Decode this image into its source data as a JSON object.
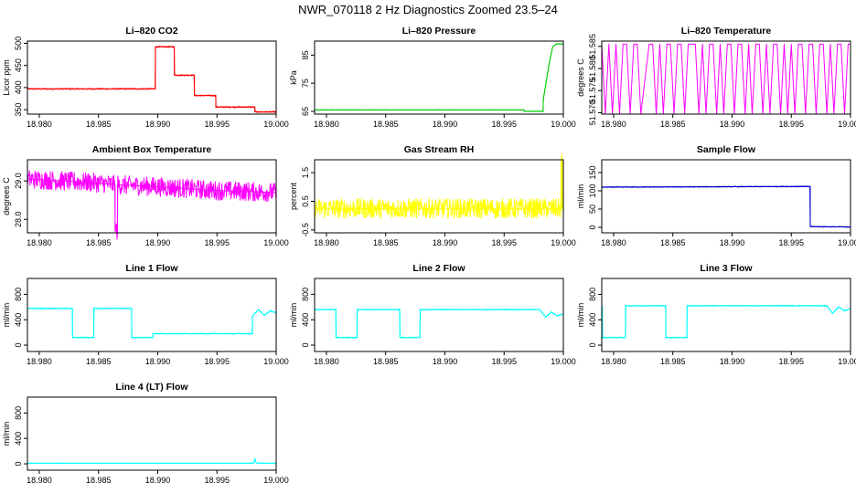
{
  "figure_title": "NWR_070118  2 Hz Diagnostics Zoomed 23.5–24",
  "chart_data": [
    {
      "type": "line",
      "title": "Li–820 CO2",
      "ylabel": "Licor ppm",
      "color": "#ff0000",
      "xlim": [
        18.979,
        19.0
      ],
      "ylim": [
        340,
        505
      ],
      "xticks": [
        18.98,
        18.985,
        18.99,
        18.995,
        19.0
      ],
      "xtick_labels": [
        "18.980",
        "18.985",
        "18.990",
        "18.995",
        "19.000"
      ],
      "yticks": [
        350,
        400,
        450,
        500
      ],
      "ytick_labels": [
        "350",
        "400",
        "450",
        "500"
      ],
      "noise": 1.5,
      "x": [
        18.979,
        18.9898,
        18.9898,
        18.9914,
        18.9914,
        18.9931,
        18.9931,
        18.9949,
        18.9949,
        18.9982,
        18.9982,
        19.0
      ],
      "y": [
        397,
        397,
        492,
        492,
        428,
        428,
        382,
        382,
        356,
        356,
        345,
        345
      ]
    },
    {
      "type": "line",
      "title": "Li–820 Pressure",
      "ylabel": "kPa",
      "color": "#00cc00",
      "xlim": [
        18.979,
        19.0
      ],
      "ylim": [
        64,
        90
      ],
      "xticks": [
        18.98,
        18.985,
        18.99,
        18.995,
        19.0
      ],
      "xtick_labels": [
        "18.980",
        "18.985",
        "18.990",
        "18.995",
        "19.000"
      ],
      "yticks": [
        65,
        75,
        85
      ],
      "ytick_labels": [
        "65",
        "75",
        "85"
      ],
      "noise": 0.1,
      "x": [
        18.979,
        18.9967,
        18.9967,
        18.9983,
        18.9983,
        18.9988,
        18.9991,
        18.9994,
        19.0
      ],
      "y": [
        65.5,
        65.5,
        65,
        65,
        69,
        82,
        88,
        89,
        89
      ]
    },
    {
      "type": "line",
      "title": "Li–820 Temperature",
      "ylabel": "degrees C",
      "color": "#ff00ff",
      "xlim": [
        18.979,
        19.0
      ],
      "ylim": [
        51.5697,
        51.5862
      ],
      "xticks": [
        18.98,
        18.985,
        18.99,
        18.995,
        19.0
      ],
      "xtick_labels": [
        "18.980",
        "18.985",
        "18.990",
        "18.995",
        "19.000"
      ],
      "yticks": [
        51.57,
        51.575,
        51.58,
        51.585
      ],
      "ytick_labels": [
        "51.570",
        "51.575",
        "51.580",
        "51.585"
      ],
      "noise": 0,
      "x": [
        18.979,
        18.9793,
        18.9796,
        18.9799,
        18.9802,
        18.9805,
        18.9808,
        18.9811,
        18.9814,
        18.9817,
        18.982,
        18.9823,
        18.983,
        18.9833,
        18.9836,
        18.9839,
        18.9842,
        18.9845,
        18.9848,
        18.9851,
        18.9854,
        18.9857,
        18.986,
        18.9863,
        18.9866,
        18.9869,
        18.9872,
        18.9875,
        18.9878,
        18.9881,
        18.9884,
        18.9887,
        18.989,
        18.9893,
        18.9896,
        18.9899,
        18.9902,
        18.9905,
        18.9908,
        18.9911,
        18.9914,
        18.9917,
        18.992,
        18.9923,
        18.9926,
        18.9929,
        18.9932,
        18.9935,
        18.9938,
        18.9941,
        18.9944,
        18.9947,
        18.995,
        18.9953,
        18.9956,
        18.9959,
        18.9962,
        18.9965,
        18.9968,
        18.9971,
        18.9974,
        18.9977,
        18.998,
        18.9983,
        18.9986,
        18.9989,
        18.9992,
        18.9995,
        18.9998,
        19.0
      ],
      "y": [
        51.5855,
        51.5697,
        51.5855,
        51.5697,
        51.5855,
        51.5697,
        51.5855,
        51.5855,
        51.5697,
        51.5855,
        51.5855,
        51.5697,
        51.5855,
        51.5855,
        51.5697,
        51.5855,
        51.5697,
        51.5855,
        51.5855,
        51.5697,
        51.5855,
        51.5855,
        51.5697,
        51.5855,
        51.5855,
        51.5855,
        51.5697,
        51.5855,
        51.5697,
        51.5855,
        51.5855,
        51.5697,
        51.5855,
        51.5697,
        51.5855,
        51.5855,
        51.5697,
        51.5855,
        51.5855,
        51.5697,
        51.5855,
        51.5697,
        51.5855,
        51.5855,
        51.5697,
        51.5855,
        51.5697,
        51.5855,
        51.5855,
        51.5697,
        51.5855,
        51.5697,
        51.5855,
        51.5697,
        51.5855,
        51.5855,
        51.5697,
        51.5855,
        51.5855,
        51.5697,
        51.5855,
        51.5855,
        51.5697,
        51.5855,
        51.5697,
        51.5855,
        51.5855,
        51.5697,
        51.5855,
        51.5855
      ]
    },
    {
      "type": "line",
      "title": "Ambient Box Temperature",
      "ylabel": "degrees C",
      "color": "#ff00ff",
      "xlim": [
        18.979,
        19.0
      ],
      "ylim": [
        27.65,
        29.55
      ],
      "xticks": [
        18.98,
        18.985,
        18.99,
        18.995,
        19.0
      ],
      "xtick_labels": [
        "18.980",
        "18.985",
        "18.990",
        "18.995",
        "19.000"
      ],
      "yticks": [
        28.0,
        29.0
      ],
      "ytick_labels": [
        "28.0",
        "29.0"
      ],
      "noise": 0.25,
      "x": [
        18.979,
        18.982,
        18.985,
        18.9864,
        18.9864,
        18.9866,
        18.9866,
        18.99,
        18.995,
        19.0
      ],
      "y": [
        29.05,
        29.0,
        28.95,
        28.9,
        27.7,
        27.7,
        28.9,
        28.85,
        28.75,
        28.7
      ]
    },
    {
      "type": "line",
      "title": "Gas Stream RH",
      "ylabel": "percent",
      "color": "#ffff00",
      "xlim": [
        18.979,
        19.0
      ],
      "ylim": [
        -0.6,
        1.95
      ],
      "xticks": [
        18.98,
        18.985,
        18.99,
        18.995,
        19.0
      ],
      "xtick_labels": [
        "18.980",
        "18.985",
        "18.990",
        "18.995",
        "19.000"
      ],
      "yticks": [
        -0.5,
        0.5,
        1.5
      ],
      "ytick_labels": [
        "-0.5",
        "0.5",
        "1.5"
      ],
      "noise": 0.35,
      "x": [
        18.979,
        18.9998,
        18.9998,
        18.9999,
        18.9999,
        19.0
      ],
      "y": [
        0.25,
        0.25,
        1.85,
        1.85,
        0.25,
        0.25
      ]
    },
    {
      "type": "line",
      "title": "Sample Flow",
      "ylabel": "ml/min",
      "color": "#0000cc",
      "xlim": [
        18.979,
        19.0
      ],
      "ylim": [
        -15,
        185
      ],
      "xticks": [
        18.98,
        18.985,
        18.99,
        18.995,
        19.0
      ],
      "xtick_labels": [
        "18.980",
        "18.985",
        "18.990",
        "18.995",
        "19.000"
      ],
      "yticks": [
        0,
        50,
        100,
        150
      ],
      "ytick_labels": [
        "0",
        "50",
        "100",
        "150"
      ],
      "noise": 1.2,
      "x": [
        18.979,
        18.9966,
        18.9966,
        19.0
      ],
      "y": [
        110,
        112,
        2,
        1
      ]
    },
    {
      "type": "line",
      "title": "Line 1 Flow",
      "ylabel": "ml/min",
      "color": "#00ffff",
      "xlim": [
        18.979,
        19.0
      ],
      "ylim": [
        -100,
        1050
      ],
      "xticks": [
        18.98,
        18.985,
        18.99,
        18.995,
        19.0
      ],
      "xtick_labels": [
        "18.980",
        "18.985",
        "18.990",
        "18.995",
        "19.000"
      ],
      "yticks": [
        0,
        400,
        800
      ],
      "ytick_labels": [
        "0",
        "400",
        "800"
      ],
      "noise": 8,
      "x": [
        18.979,
        18.97905,
        18.97905,
        18.9828,
        18.9828,
        18.9846,
        18.9846,
        18.9878,
        18.9878,
        18.9896,
        18.9896,
        18.998,
        18.998,
        18.9985,
        18.999,
        18.9995,
        19.0
      ],
      "y": [
        580,
        580,
        580,
        580,
        120,
        120,
        580,
        580,
        120,
        120,
        180,
        180,
        460,
        560,
        470,
        540,
        510
      ]
    },
    {
      "type": "line",
      "title": "Line 2 Flow",
      "ylabel": "ml/min",
      "color": "#00ffff",
      "xlim": [
        18.979,
        19.0
      ],
      "ylim": [
        -100,
        1050
      ],
      "xticks": [
        18.98,
        18.985,
        18.99,
        18.995,
        19.0
      ],
      "xtick_labels": [
        "18.980",
        "18.985",
        "18.990",
        "18.995",
        "19.000"
      ],
      "yticks": [
        0,
        400,
        800
      ],
      "ytick_labels": [
        "0",
        "400",
        "800"
      ],
      "noise": 8,
      "x": [
        18.979,
        18.9808,
        18.9808,
        18.9826,
        18.9826,
        18.9862,
        18.9862,
        18.9879,
        18.9879,
        18.998,
        18.9985,
        18.999,
        18.9995,
        19.0
      ],
      "y": [
        560,
        560,
        120,
        120,
        560,
        560,
        120,
        120,
        560,
        560,
        440,
        520,
        460,
        490
      ]
    },
    {
      "type": "line",
      "title": "Line 3 Flow",
      "ylabel": "ml/min",
      "color": "#00ffff",
      "xlim": [
        18.979,
        19.0
      ],
      "ylim": [
        -100,
        1050
      ],
      "xticks": [
        18.98,
        18.985,
        18.99,
        18.995,
        19.0
      ],
      "xtick_labels": [
        "18.980",
        "18.985",
        "18.990",
        "18.995",
        "19.000"
      ],
      "yticks": [
        0,
        400,
        800
      ],
      "ytick_labels": [
        "0",
        "400",
        "800"
      ],
      "noise": 8,
      "x": [
        18.979,
        18.97905,
        18.97905,
        18.981,
        18.981,
        18.9844,
        18.9844,
        18.9862,
        18.9862,
        18.998,
        18.9985,
        18.999,
        18.9995,
        19.0
      ],
      "y": [
        600,
        600,
        120,
        120,
        620,
        620,
        120,
        120,
        620,
        620,
        500,
        600,
        540,
        580
      ]
    },
    {
      "type": "line",
      "title": "Line 4 (LT) Flow",
      "ylabel": "ml/min",
      "color": "#00ffff",
      "xlim": [
        18.979,
        19.0
      ],
      "ylim": [
        -100,
        1050
      ],
      "xticks": [
        18.98,
        18.985,
        18.99,
        18.995,
        19.0
      ],
      "xtick_labels": [
        "18.980",
        "18.985",
        "18.990",
        "18.995",
        "19.000"
      ],
      "yticks": [
        0,
        400,
        800
      ],
      "ytick_labels": [
        "0",
        "400",
        "800"
      ],
      "noise": 3,
      "x": [
        18.979,
        18.9981,
        18.9982,
        18.9983,
        18.9984,
        19.0
      ],
      "y": [
        10,
        10,
        80,
        20,
        10,
        10
      ]
    }
  ]
}
